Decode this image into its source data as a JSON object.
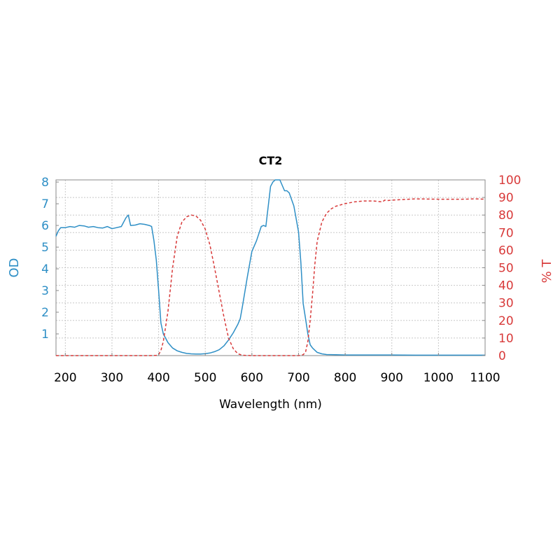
{
  "chart_data": {
    "type": "line",
    "title": "CT2",
    "xlabel": "Wavelength (nm)",
    "ylabel_left": "OD",
    "ylabel_right": "% T",
    "xlim": [
      180,
      1100
    ],
    "ylim_left": [
      0,
      8.1
    ],
    "ylim_right": [
      0,
      100
    ],
    "x_ticks": [
      200,
      300,
      400,
      500,
      600,
      700,
      800,
      900,
      1000,
      1100
    ],
    "y_ticks_left": [
      1,
      2,
      3,
      4,
      5,
      6,
      7,
      8
    ],
    "y_ticks_right": [
      0,
      10,
      20,
      30,
      40,
      50,
      60,
      70,
      80,
      90,
      100
    ],
    "grid": true,
    "colors": {
      "od": "#2e8fc6",
      "transmission": "#d83a3a",
      "grid": "#c8c8c8",
      "frame": "#8a8a8a"
    },
    "series": [
      {
        "axis": "left",
        "style": "solid",
        "x": [
          180,
          185,
          190,
          200,
          210,
          220,
          230,
          240,
          250,
          260,
          270,
          280,
          290,
          300,
          310,
          320,
          330,
          335,
          340,
          350,
          360,
          370,
          380,
          385,
          390,
          395,
          400,
          405,
          410,
          420,
          430,
          440,
          450,
          460,
          470,
          480,
          490,
          500,
          510,
          520,
          530,
          540,
          550,
          560,
          570,
          575,
          580,
          590,
          600,
          610,
          620,
          625,
          630,
          640,
          645,
          650,
          660,
          670,
          675,
          680,
          690,
          700,
          705,
          710,
          715,
          720,
          725,
          730,
          740,
          750,
          760,
          780,
          800,
          850,
          900,
          950,
          1000,
          1050,
          1100
        ],
        "y": [
          5.5,
          5.75,
          5.9,
          5.9,
          5.95,
          5.92,
          6.0,
          5.98,
          5.92,
          5.95,
          5.9,
          5.88,
          5.95,
          5.85,
          5.9,
          5.95,
          6.35,
          6.48,
          6.0,
          6.02,
          6.08,
          6.05,
          6.0,
          5.95,
          5.3,
          4.4,
          3.0,
          1.5,
          1.0,
          0.6,
          0.35,
          0.22,
          0.15,
          0.1,
          0.08,
          0.07,
          0.07,
          0.09,
          0.12,
          0.18,
          0.27,
          0.45,
          0.72,
          1.05,
          1.45,
          1.7,
          2.3,
          3.6,
          4.8,
          5.3,
          5.95,
          6.0,
          5.95,
          7.8,
          8.0,
          8.15,
          8.1,
          7.6,
          7.6,
          7.5,
          6.9,
          5.7,
          4.3,
          2.4,
          1.7,
          1.0,
          0.5,
          0.35,
          0.15,
          0.08,
          0.05,
          0.04,
          0.03,
          0.03,
          0.03,
          0.02,
          0.02,
          0.02,
          0.02
        ]
      },
      {
        "axis": "right",
        "style": "dashed",
        "x": [
          180,
          300,
          380,
          395,
          400,
          405,
          410,
          420,
          430,
          440,
          450,
          460,
          470,
          480,
          490,
          500,
          510,
          520,
          530,
          540,
          550,
          560,
          570,
          580,
          600,
          650,
          700,
          710,
          715,
          720,
          725,
          730,
          735,
          740,
          750,
          760,
          770,
          780,
          800,
          820,
          840,
          860,
          880,
          885,
          890,
          900,
          950,
          1000,
          1050,
          1080,
          1100
        ],
        "y": [
          0,
          0,
          0,
          0.1,
          0.5,
          3,
          8,
          25,
          50,
          68,
          76,
          79,
          80,
          79.5,
          77,
          72,
          63,
          50,
          36,
          22,
          10,
          4,
          1,
          0.2,
          0,
          0,
          0,
          0.5,
          2,
          8,
          20,
          35,
          52,
          65,
          76,
          81,
          83.5,
          85,
          86.5,
          87.5,
          88,
          88,
          87.5,
          88.5,
          88.2,
          88.5,
          89.2,
          89,
          89,
          89.2,
          89
        ]
      }
    ]
  }
}
